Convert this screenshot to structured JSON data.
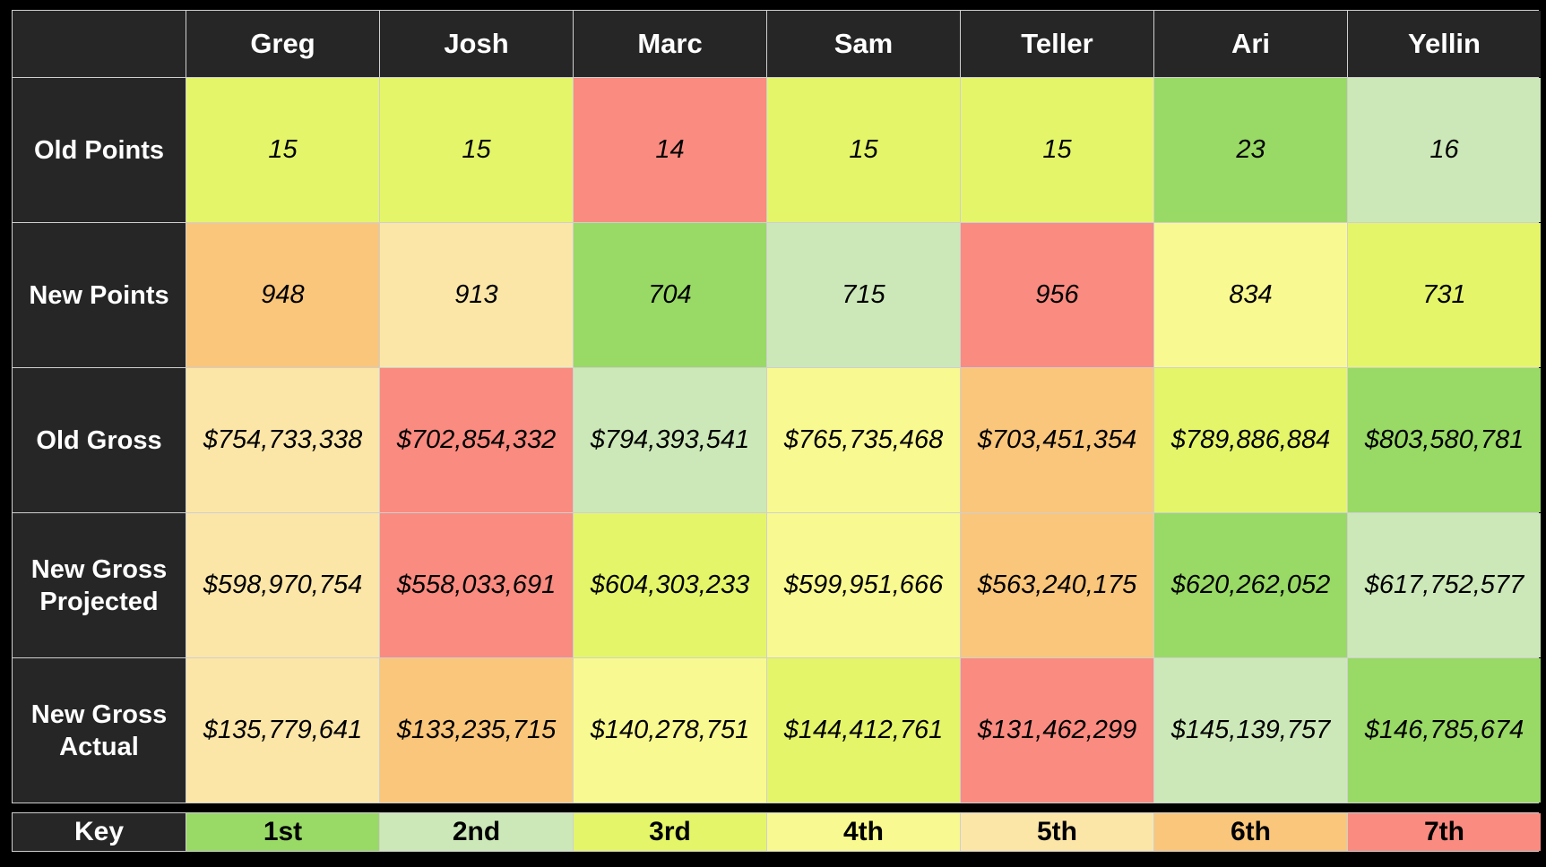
{
  "table": {
    "columns": [
      "Greg",
      "Josh",
      "Marc",
      "Sam",
      "Teller",
      "Ari",
      "Yellin"
    ],
    "rows": [
      {
        "label": "Old Points",
        "values": [
          "15",
          "15",
          "14",
          "15",
          "15",
          "23",
          "16"
        ],
        "ranks": [
          3,
          3,
          7,
          3,
          3,
          1,
          2
        ]
      },
      {
        "label": "New Points",
        "values": [
          "948",
          "913",
          "704",
          "715",
          "956",
          "834",
          "731"
        ],
        "ranks": [
          6,
          5,
          1,
          2,
          7,
          4,
          3
        ]
      },
      {
        "label": "Old Gross",
        "values": [
          "$754,733,338",
          "$702,854,332",
          "$794,393,541",
          "$765,735,468",
          "$703,451,354",
          "$789,886,884",
          "$803,580,781"
        ],
        "ranks": [
          5,
          7,
          2,
          4,
          6,
          3,
          1
        ]
      },
      {
        "label": "New Gross Projected",
        "values": [
          "$598,970,754",
          "$558,033,691",
          "$604,303,233",
          "$599,951,666",
          "$563,240,175",
          "$620,262,052",
          "$617,752,577"
        ],
        "ranks": [
          5,
          7,
          3,
          4,
          6,
          1,
          2
        ]
      },
      {
        "label": "New Gross Actual",
        "values": [
          "$135,779,641",
          "$133,235,715",
          "$140,278,751",
          "$144,412,761",
          "$131,462,299",
          "$145,139,757",
          "$146,785,674"
        ],
        "ranks": [
          5,
          6,
          4,
          3,
          7,
          2,
          1
        ]
      }
    ]
  },
  "key": {
    "label": "Key",
    "items": [
      "1st",
      "2nd",
      "3rd",
      "4th",
      "5th",
      "6th",
      "7th"
    ]
  },
  "colors": {
    "rank_1": "#99d966",
    "rank_2": "#cce8b8",
    "rank_3": "#e4f56a",
    "rank_4": "#f9f991",
    "rank_5": "#fbe6a8",
    "rank_6": "#f9c67b",
    "rank_7": "#f98b80",
    "header_bg": "#262626",
    "page_bg": "#000000"
  }
}
